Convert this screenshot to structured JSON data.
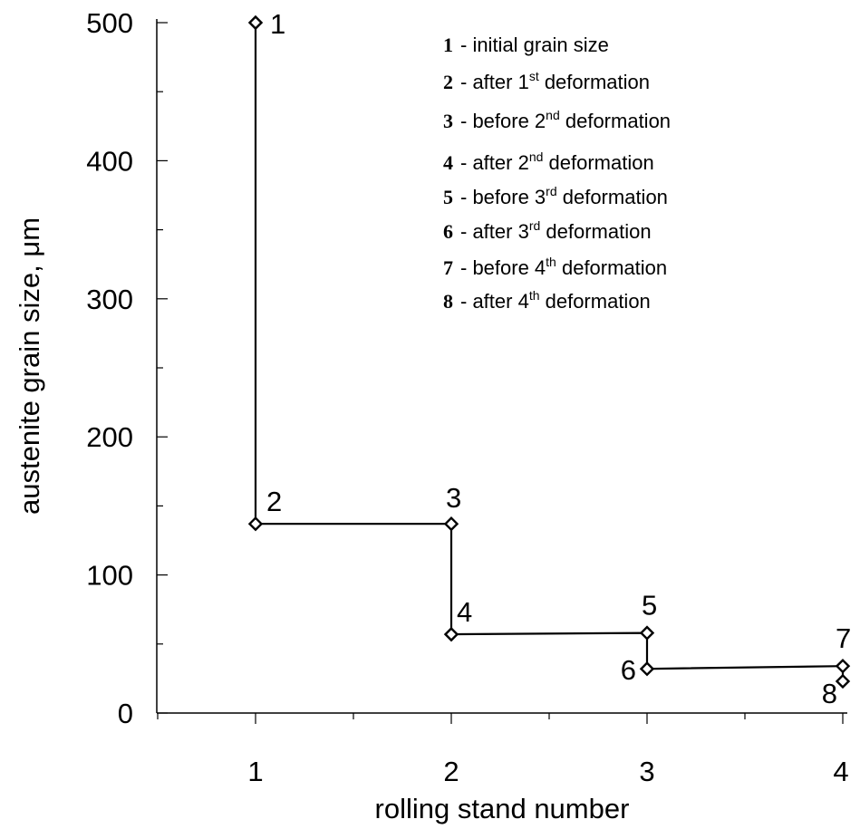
{
  "chart_data": {
    "type": "line",
    "xlabel": "rolling stand number",
    "ylabel": "austenite grain size, μm",
    "xlim": [
      0.5,
      4.0
    ],
    "ylim": [
      0,
      500
    ],
    "x_ticks": [
      1,
      2,
      3,
      4
    ],
    "y_ticks": [
      0,
      100,
      200,
      300,
      400,
      500
    ],
    "grid": false,
    "legend_placement": "top-right",
    "points": [
      {
        "label": "1",
        "x": 1,
        "y": 500
      },
      {
        "label": "2",
        "x": 1,
        "y": 137
      },
      {
        "label": "3",
        "x": 2,
        "y": 137
      },
      {
        "label": "4",
        "x": 2,
        "y": 57
      },
      {
        "label": "5",
        "x": 3,
        "y": 58
      },
      {
        "label": "6",
        "x": 3,
        "y": 32
      },
      {
        "label": "7",
        "x": 4,
        "y": 34
      },
      {
        "label": "8",
        "x": 4,
        "y": 23
      }
    ],
    "legend": [
      {
        "num": "1",
        "text": "initial grain size",
        "sup": "",
        "tail": ""
      },
      {
        "num": "2",
        "text": "after 1",
        "sup": "st",
        "tail": " deformation"
      },
      {
        "num": "3",
        "text": "before 2",
        "sup": "nd",
        "tail": " deformation"
      },
      {
        "num": "4",
        "text": "after 2",
        "sup": "nd",
        "tail": " deformation"
      },
      {
        "num": "5",
        "text": "before 3",
        "sup": "rd",
        "tail": " deformation"
      },
      {
        "num": "6",
        "text": "after 3",
        "sup": "rd",
        "tail": " deformation"
      },
      {
        "num": "7",
        "text": "before 4",
        "sup": "th",
        "tail": " deformation"
      },
      {
        "num": "8",
        "text": "after 4",
        "sup": "th",
        "tail": " deformation"
      }
    ]
  }
}
